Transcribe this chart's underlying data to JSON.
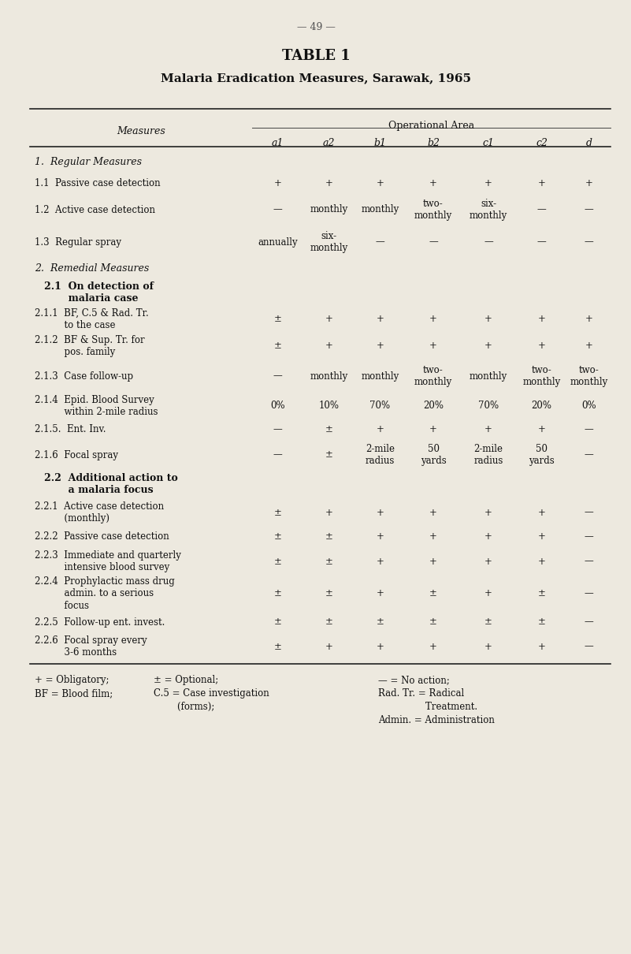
{
  "page_number": "— 49 —",
  "title": "TABLE 1",
  "subtitle": "Malaria Eradication Measures, Sarawak, 1965",
  "bg_color": "#ede9df",
  "header_cols": [
    "Measures",
    "a1",
    "a2",
    "b1",
    "b2",
    "c1",
    "c2",
    "d"
  ],
  "operational_area_label": "Operational Area",
  "rows": [
    {
      "label": "1.  Regular Measures",
      "style": "italic_section",
      "vals": [
        "",
        "",
        "",
        "",
        "",
        "",
        ""
      ]
    },
    {
      "label": "1.1  Passive case detection",
      "style": "normal",
      "vals": [
        "+",
        "+",
        "+",
        "+",
        "+",
        "+",
        "+"
      ]
    },
    {
      "label": "1.2  Active case detection",
      "style": "normal",
      "vals": [
        "—",
        "monthly",
        "monthly",
        "two-\nmonthly",
        "six-\nmonthly",
        "—",
        "—"
      ]
    },
    {
      "label": "1.3  Regular spray",
      "style": "normal",
      "vals": [
        "annually",
        "six-\nmonthly",
        "—",
        "—",
        "—",
        "—",
        "—"
      ]
    },
    {
      "label": "2.  Remedial Measures",
      "style": "italic_section",
      "vals": [
        "",
        "",
        "",
        "",
        "",
        "",
        ""
      ]
    },
    {
      "label": "2.1  On detection of\n       malaria case",
      "style": "bold_subsection",
      "vals": [
        "",
        "",
        "",
        "",
        "",
        "",
        ""
      ]
    },
    {
      "label": "2.1.1  BF, C.5 & Rad. Tr.\n          to the case",
      "style": "normal",
      "vals": [
        "±",
        "+",
        "+",
        "+",
        "+",
        "+",
        "+"
      ]
    },
    {
      "label": "2.1.2  BF & Sup. Tr. for\n          pos. family",
      "style": "normal",
      "vals": [
        "±",
        "+",
        "+",
        "+",
        "+",
        "+",
        "+"
      ]
    },
    {
      "label": "2.1.3  Case follow-up",
      "style": "normal",
      "vals": [
        "—",
        "monthly",
        "monthly",
        "two-\nmonthly",
        "monthly",
        "two-\nmonthly",
        "two-\nmonthly"
      ]
    },
    {
      "label": "2.1.4  Epid. Blood Survey\n          within 2-mile radius",
      "style": "normal",
      "vals": [
        "0%",
        "10%",
        "70%",
        "20%",
        "70%",
        "20%",
        "0%"
      ]
    },
    {
      "label": "2.1.5.  Ent. Inv.",
      "style": "normal",
      "vals": [
        "—",
        "±",
        "+",
        "+",
        "+",
        "+",
        "—"
      ]
    },
    {
      "label": "2.1.6  Focal spray",
      "style": "normal",
      "vals": [
        "—",
        "±",
        "2-mile\nradius",
        "50\nyards",
        "2-mile\nradius",
        "50\nyards",
        "—"
      ]
    },
    {
      "label": "2.2  Additional action to\n       a malaria focus",
      "style": "bold_subsection",
      "vals": [
        "",
        "",
        "",
        "",
        "",
        "",
        ""
      ]
    },
    {
      "label": "2.2.1  Active case detection\n          (monthly)",
      "style": "normal",
      "vals": [
        "±",
        "+",
        "+",
        "+",
        "+",
        "+",
        "—"
      ]
    },
    {
      "label": "2.2.2  Passive case detection",
      "style": "normal",
      "vals": [
        "±",
        "±",
        "+",
        "+",
        "+",
        "+",
        "—"
      ]
    },
    {
      "label": "2.2.3  Immediate and quarterly\n          intensive blood survey",
      "style": "normal",
      "vals": [
        "±",
        "±",
        "+",
        "+",
        "+",
        "+",
        "—"
      ]
    },
    {
      "label": "2.2.4  Prophylactic mass drug\n          admin. to a serious\n          focus",
      "style": "normal",
      "vals": [
        "±",
        "±",
        "+",
        "±",
        "+",
        "±",
        "—"
      ]
    },
    {
      "label": "2.2.5  Follow-up ent. invest.",
      "style": "normal",
      "vals": [
        "±",
        "±",
        "±",
        "±",
        "±",
        "±",
        "—"
      ]
    },
    {
      "label": "2.2.6  Focal spray every\n          3-6 months",
      "style": "normal",
      "vals": [
        "±",
        "+",
        "+",
        "+",
        "+",
        "+",
        "—"
      ]
    }
  ],
  "legend_col1_line1": "+ = Obligatory;",
  "legend_col1_line2": "BF = Blood film;",
  "legend_col2_line1": "± = Optional;",
  "legend_col2_line2": "C.5 = Case investigation",
  "legend_col2_line3": "        (forms);",
  "legend_col3_line1": "— = No action;",
  "legend_col3_line2": "Rad. Tr. = Radical",
  "legend_col3_line3": "                Treatment.",
  "legend_col3_line4": "Admin. = Administration"
}
